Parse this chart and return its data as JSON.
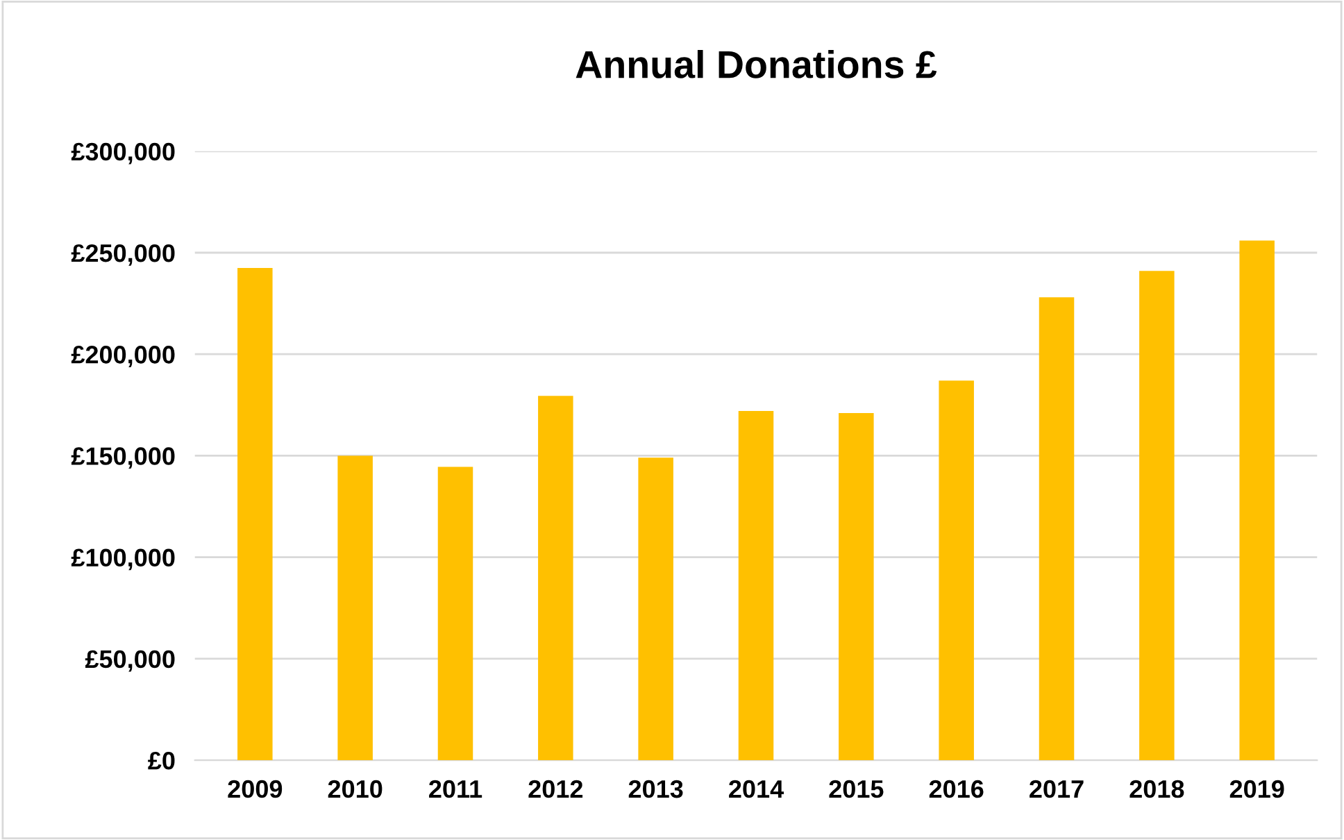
{
  "chart_data": {
    "type": "bar",
    "title": "Annual Donations £",
    "categories": [
      "2009",
      "2010",
      "2011",
      "2012",
      "2013",
      "2014",
      "2015",
      "2016",
      "2017",
      "2018",
      "2019"
    ],
    "values": [
      242500,
      150000,
      144500,
      179500,
      149000,
      172000,
      171000,
      187000,
      228000,
      241000,
      256000
    ],
    "color": "#ffc000",
    "ylim": [
      0,
      300000
    ],
    "yticks": [
      {
        "value": 0,
        "label": "£0"
      },
      {
        "value": 50000,
        "label": "£50,000"
      },
      {
        "value": 100000,
        "label": "£100,000"
      },
      {
        "value": 150000,
        "label": "£150,000"
      },
      {
        "value": 200000,
        "label": "£200,000"
      },
      {
        "value": 250000,
        "label": "£250,000"
      },
      {
        "value": 300000,
        "label": "£300,000"
      }
    ],
    "grid": "y"
  }
}
